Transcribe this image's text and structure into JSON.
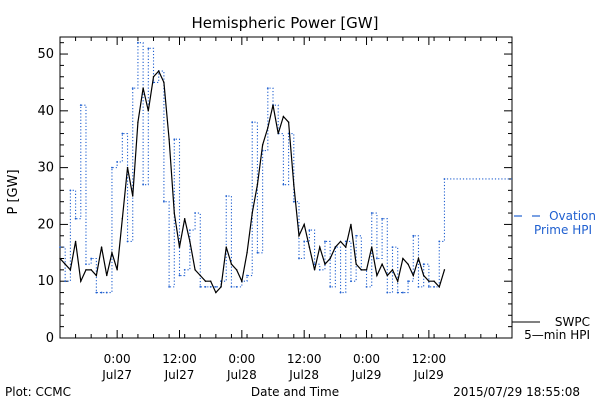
{
  "chart_data": {
    "type": "line",
    "title": "Hemispheric Power [GW]",
    "xlabel": "Date and Time",
    "ylabel": "P [GW]",
    "ylim": [
      0,
      53
    ],
    "yticks": [
      0,
      10,
      20,
      30,
      40,
      50
    ],
    "xlim": [
      "2015-07-26T13:00",
      "2015-07-30T04:00"
    ],
    "xticks": [
      {
        "time": "2015-07-27T00:00",
        "line1": "0:00",
        "line2": "Jul27"
      },
      {
        "time": "2015-07-27T12:00",
        "line1": "12:00",
        "line2": "Jul27"
      },
      {
        "time": "2015-07-28T00:00",
        "line1": "0:00",
        "line2": "Jul28"
      },
      {
        "time": "2015-07-28T12:00",
        "line1": "12:00",
        "line2": "Jul28"
      },
      {
        "time": "2015-07-29T00:00",
        "line1": "0:00",
        "line2": "Jul29"
      },
      {
        "time": "2015-07-29T12:00",
        "line1": "12:00",
        "line2": "Jul29"
      }
    ],
    "grid": false,
    "legend_position": "right",
    "series": [
      {
        "name": "Ovation Prime HPI",
        "legend_lines": [
          "Ovation",
          "Prime HPI"
        ],
        "color": "#2060d0",
        "style": "dotted-step",
        "points": [
          [
            "2015-07-26T13:00",
            16
          ],
          [
            "2015-07-26T14:00",
            10
          ],
          [
            "2015-07-26T15:00",
            26
          ],
          [
            "2015-07-26T16:00",
            21
          ],
          [
            "2015-07-26T17:00",
            41
          ],
          [
            "2015-07-26T18:00",
            13
          ],
          [
            "2015-07-26T19:00",
            14
          ],
          [
            "2015-07-26T20:00",
            8
          ],
          [
            "2015-07-26T21:00",
            8
          ],
          [
            "2015-07-26T22:00",
            8
          ],
          [
            "2015-07-26T23:00",
            30
          ],
          [
            "2015-07-27T00:00",
            31
          ],
          [
            "2015-07-27T01:00",
            36
          ],
          [
            "2015-07-27T02:00",
            17
          ],
          [
            "2015-07-27T03:00",
            44
          ],
          [
            "2015-07-27T04:00",
            52
          ],
          [
            "2015-07-27T05:00",
            27
          ],
          [
            "2015-07-27T06:00",
            51
          ],
          [
            "2015-07-27T07:00",
            45
          ],
          [
            "2015-07-27T08:00",
            47
          ],
          [
            "2015-07-27T09:00",
            24
          ],
          [
            "2015-07-27T10:00",
            9
          ],
          [
            "2015-07-27T11:00",
            35
          ],
          [
            "2015-07-27T12:00",
            11
          ],
          [
            "2015-07-27T13:00",
            12
          ],
          [
            "2015-07-27T14:00",
            19
          ],
          [
            "2015-07-27T15:00",
            22
          ],
          [
            "2015-07-27T16:00",
            9
          ],
          [
            "2015-07-27T17:00",
            9
          ],
          [
            "2015-07-27T18:00",
            9
          ],
          [
            "2015-07-27T19:00",
            9
          ],
          [
            "2015-07-27T20:00",
            10
          ],
          [
            "2015-07-27T21:00",
            25
          ],
          [
            "2015-07-27T22:00",
            9
          ],
          [
            "2015-07-27T23:00",
            9
          ],
          [
            "2015-07-28T00:00",
            10
          ],
          [
            "2015-07-28T01:00",
            11
          ],
          [
            "2015-07-28T02:00",
            38
          ],
          [
            "2015-07-28T03:00",
            15
          ],
          [
            "2015-07-28T04:00",
            33
          ],
          [
            "2015-07-28T05:00",
            44
          ],
          [
            "2015-07-28T06:00",
            41
          ],
          [
            "2015-07-28T07:00",
            36
          ],
          [
            "2015-07-28T08:00",
            27
          ],
          [
            "2015-07-28T09:00",
            36
          ],
          [
            "2015-07-28T10:00",
            24
          ],
          [
            "2015-07-28T11:00",
            14
          ],
          [
            "2015-07-28T12:00",
            17
          ],
          [
            "2015-07-28T13:00",
            19
          ],
          [
            "2015-07-28T14:00",
            13
          ],
          [
            "2015-07-28T15:00",
            12
          ],
          [
            "2015-07-28T16:00",
            17
          ],
          [
            "2015-07-28T17:00",
            9
          ],
          [
            "2015-07-28T18:00",
            16
          ],
          [
            "2015-07-28T19:00",
            8
          ],
          [
            "2015-07-28T20:00",
            17
          ],
          [
            "2015-07-28T21:00",
            10
          ],
          [
            "2015-07-28T22:00",
            18
          ],
          [
            "2015-07-28T23:00",
            12
          ],
          [
            "2015-07-29T00:00",
            9
          ],
          [
            "2015-07-29T01:00",
            22
          ],
          [
            "2015-07-29T02:00",
            14
          ],
          [
            "2015-07-29T03:00",
            21
          ],
          [
            "2015-07-29T04:00",
            8
          ],
          [
            "2015-07-29T05:00",
            16
          ],
          [
            "2015-07-29T06:00",
            8
          ],
          [
            "2015-07-29T07:00",
            8
          ],
          [
            "2015-07-29T08:00",
            10
          ],
          [
            "2015-07-29T09:00",
            18
          ],
          [
            "2015-07-29T10:00",
            9
          ],
          [
            "2015-07-29T11:00",
            13
          ],
          [
            "2015-07-29T12:00",
            9
          ],
          [
            "2015-07-29T13:00",
            9
          ],
          [
            "2015-07-29T14:00",
            17
          ],
          [
            "2015-07-29T15:00",
            28
          ]
        ]
      },
      {
        "name": "SWPC 5-min HPI",
        "legend_lines": [
          "SWPC",
          "5—min HPI"
        ],
        "color": "#000000",
        "style": "solid",
        "points": [
          [
            "2015-07-26T13:00",
            14
          ],
          [
            "2015-07-26T14:00",
            13
          ],
          [
            "2015-07-26T15:00",
            12
          ],
          [
            "2015-07-26T16:00",
            17
          ],
          [
            "2015-07-26T17:00",
            10
          ],
          [
            "2015-07-26T18:00",
            12
          ],
          [
            "2015-07-26T19:00",
            12
          ],
          [
            "2015-07-26T20:00",
            11
          ],
          [
            "2015-07-26T21:00",
            16
          ],
          [
            "2015-07-26T22:00",
            11
          ],
          [
            "2015-07-26T23:00",
            15
          ],
          [
            "2015-07-27T00:00",
            12
          ],
          [
            "2015-07-27T01:00",
            21
          ],
          [
            "2015-07-27T02:00",
            30
          ],
          [
            "2015-07-27T03:00",
            25
          ],
          [
            "2015-07-27T04:00",
            38
          ],
          [
            "2015-07-27T05:00",
            44
          ],
          [
            "2015-07-27T06:00",
            40
          ],
          [
            "2015-07-27T07:00",
            46
          ],
          [
            "2015-07-27T08:00",
            47
          ],
          [
            "2015-07-27T09:00",
            45
          ],
          [
            "2015-07-27T10:00",
            35
          ],
          [
            "2015-07-27T11:00",
            22
          ],
          [
            "2015-07-27T12:00",
            16
          ],
          [
            "2015-07-27T13:00",
            21
          ],
          [
            "2015-07-27T14:00",
            17
          ],
          [
            "2015-07-27T15:00",
            12
          ],
          [
            "2015-07-27T16:00",
            11
          ],
          [
            "2015-07-27T17:00",
            10
          ],
          [
            "2015-07-27T18:00",
            10
          ],
          [
            "2015-07-27T19:00",
            8
          ],
          [
            "2015-07-27T20:00",
            9
          ],
          [
            "2015-07-27T21:00",
            16
          ],
          [
            "2015-07-27T22:00",
            13
          ],
          [
            "2015-07-27T23:00",
            12
          ],
          [
            "2015-07-28T00:00",
            10
          ],
          [
            "2015-07-28T01:00",
            15
          ],
          [
            "2015-07-28T02:00",
            22
          ],
          [
            "2015-07-28T03:00",
            27
          ],
          [
            "2015-07-28T04:00",
            34
          ],
          [
            "2015-07-28T05:00",
            37
          ],
          [
            "2015-07-28T06:00",
            41
          ],
          [
            "2015-07-28T07:00",
            36
          ],
          [
            "2015-07-28T08:00",
            39
          ],
          [
            "2015-07-28T09:00",
            38
          ],
          [
            "2015-07-28T10:00",
            27
          ],
          [
            "2015-07-28T11:00",
            18
          ],
          [
            "2015-07-28T12:00",
            20
          ],
          [
            "2015-07-28T13:00",
            16
          ],
          [
            "2015-07-28T14:00",
            12
          ],
          [
            "2015-07-28T15:00",
            16
          ],
          [
            "2015-07-28T16:00",
            13
          ],
          [
            "2015-07-28T17:00",
            14
          ],
          [
            "2015-07-28T18:00",
            16
          ],
          [
            "2015-07-28T19:00",
            17
          ],
          [
            "2015-07-28T20:00",
            16
          ],
          [
            "2015-07-28T21:00",
            20
          ],
          [
            "2015-07-28T22:00",
            13
          ],
          [
            "2015-07-28T23:00",
            12
          ],
          [
            "2015-07-29T00:00",
            12
          ],
          [
            "2015-07-29T01:00",
            16
          ],
          [
            "2015-07-29T02:00",
            11
          ],
          [
            "2015-07-29T03:00",
            13
          ],
          [
            "2015-07-29T04:00",
            11
          ],
          [
            "2015-07-29T05:00",
            12
          ],
          [
            "2015-07-29T06:00",
            10
          ],
          [
            "2015-07-29T07:00",
            14
          ],
          [
            "2015-07-29T08:00",
            13
          ],
          [
            "2015-07-29T09:00",
            11
          ],
          [
            "2015-07-29T10:00",
            14
          ],
          [
            "2015-07-29T11:00",
            11
          ],
          [
            "2015-07-29T12:00",
            10
          ],
          [
            "2015-07-29T13:00",
            10
          ],
          [
            "2015-07-29T14:00",
            9
          ],
          [
            "2015-07-29T15:00",
            12
          ]
        ]
      }
    ]
  },
  "footer": {
    "left": "Plot: CCMC",
    "right": "2015/07/29 18:55:08"
  }
}
